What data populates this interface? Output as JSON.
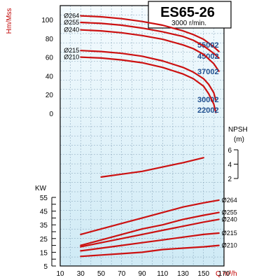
{
  "colors": {
    "curve": "#cc1111",
    "grid": "#7f9fb6",
    "bg_top": "#f4fbfe",
    "bg_bottom": "#cfeaf5",
    "model": "#1f4f8f",
    "axis_title": "#c00000"
  },
  "chart_data": {
    "type": "line",
    "title": "ES65-26",
    "subtitle": "3000 r/min.",
    "x_axis": {
      "label": "Q m³/h",
      "min": 10,
      "max": 170,
      "ticks": [
        10,
        30,
        50,
        70,
        90,
        110,
        130,
        150,
        170
      ]
    },
    "head_axis": {
      "label": "Hm/Mss",
      "min": 0,
      "max": 100,
      "ticks": [
        0,
        20,
        40,
        60,
        80,
        100
      ]
    },
    "npsh_axis": {
      "label": "NPSH",
      "unit": "(m)",
      "min": 2,
      "max": 6,
      "ticks": [
        2,
        4,
        6
      ]
    },
    "kw_axis": {
      "label": "KW",
      "min": 5,
      "max": 55,
      "ticks": [
        5,
        15,
        25,
        35,
        45,
        55
      ]
    },
    "head_series": [
      {
        "impeller": "Ø264",
        "model": "55002",
        "x": [
          30,
          50,
          70,
          90,
          110,
          130,
          140,
          150,
          160,
          165
        ],
        "y": [
          104,
          103,
          101,
          98,
          94,
          88,
          84,
          79,
          71,
          66
        ]
      },
      {
        "impeller": "Ø255",
        "model": "45002",
        "x": [
          30,
          50,
          70,
          90,
          110,
          130,
          140,
          150,
          160,
          165
        ],
        "y": [
          97,
          96,
          94,
          91,
          87,
          82,
          78,
          72,
          64,
          59
        ]
      },
      {
        "impeller": "Ø240",
        "model": "37002",
        "x": [
          30,
          50,
          70,
          90,
          110,
          130,
          140,
          150,
          160,
          165
        ],
        "y": [
          89,
          88,
          86,
          83,
          79,
          73,
          69,
          63,
          53,
          45
        ]
      },
      {
        "impeller": "Ø215",
        "model": "30002",
        "x": [
          30,
          50,
          70,
          90,
          110,
          130,
          140,
          150,
          155,
          160,
          162
        ],
        "y": [
          67,
          66,
          64,
          61,
          56,
          49,
          44,
          37,
          31,
          22,
          14
        ]
      },
      {
        "impeller": "Ø210",
        "model": "22002",
        "x": [
          30,
          50,
          70,
          90,
          110,
          130,
          140,
          150,
          155,
          160,
          162
        ],
        "y": [
          60,
          59,
          57,
          54,
          49,
          42,
          37,
          29,
          21,
          10,
          1
        ]
      }
    ],
    "npsh_series": [
      {
        "x": [
          50,
          70,
          90,
          110,
          130,
          150
        ],
        "y": [
          2.2,
          2.6,
          3.0,
          3.6,
          4.2,
          4.9
        ]
      }
    ],
    "power_series": [
      {
        "impeller": "Ø264",
        "x": [
          30,
          50,
          70,
          90,
          110,
          130,
          150,
          165
        ],
        "y": [
          28,
          32,
          36,
          40,
          44,
          48,
          51,
          53
        ]
      },
      {
        "impeller": "Ø255",
        "x": [
          30,
          50,
          70,
          90,
          110,
          130,
          150,
          165
        ],
        "y": [
          20,
          24,
          28,
          32,
          35,
          39,
          42,
          44
        ]
      },
      {
        "impeller": "Ø240",
        "x": [
          30,
          50,
          70,
          90,
          110,
          130,
          150,
          165
        ],
        "y": [
          19,
          22,
          25,
          28,
          31,
          34,
          37,
          39
        ]
      },
      {
        "impeller": "Ø215",
        "x": [
          30,
          50,
          70,
          90,
          110,
          130,
          150,
          165
        ],
        "y": [
          16,
          18,
          20,
          22,
          24,
          26,
          28,
          29
        ]
      },
      {
        "impeller": "Ø210",
        "x": [
          30,
          50,
          70,
          90,
          110,
          130,
          150,
          165
        ],
        "y": [
          12,
          13,
          14,
          15,
          17,
          18,
          19,
          20
        ]
      }
    ]
  }
}
